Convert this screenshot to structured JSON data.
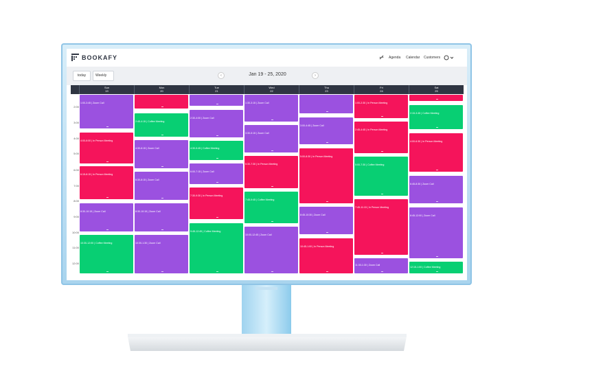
{
  "app": {
    "logo": "BOOKAFY",
    "nav": [
      "Agenda",
      "Calendar",
      "Customers"
    ],
    "today_button": "today",
    "view_select": "Weekly",
    "range_title": "Jan 19 - 25, 2020"
  },
  "days": [
    {
      "name": "Sun",
      "date": "19"
    },
    {
      "name": "Mon",
      "date": "20"
    },
    {
      "name": "Tue",
      "date": "21"
    },
    {
      "name": "Wed",
      "date": "22"
    },
    {
      "name": "Thu",
      "date": "23"
    },
    {
      "name": "Fri",
      "date": "24"
    },
    {
      "name": "Sat",
      "date": "25"
    }
  ],
  "hours": [
    "2:00",
    "3:00",
    "4:00",
    "5:00",
    "6:00",
    "7:00",
    "8:00",
    "9:00",
    "10:00",
    "11:00",
    "12:00"
  ],
  "events": [
    [
      {
        "label": "1:00-3:45 | Zoom Call",
        "color": "#9b51e0"
      },
      {
        "label": "4:00-6:00 | In Person Meeting",
        "color": "#f5145b"
      },
      {
        "label": "6:15-8:15 | In Person Meeting",
        "color": "#f5145b"
      },
      {
        "label": "8:30-10:15 | Zoom Call",
        "color": "#9b51e0"
      },
      {
        "label": "10:30-12:00 | Coffee Meeting",
        "color": "#08cf73"
      }
    ],
    [
      {
        "color": "#f5145b"
      },
      {
        "label": "2:45-4:15 | Coffee Meeting",
        "color": "#08cf73"
      },
      {
        "label": "4:30-6:15 | Zoom Call",
        "color": "#9b51e0"
      },
      {
        "label": "6:30-8:15 | Zoom Call",
        "color": "#9b51e0"
      },
      {
        "label": "8:30-10:15 | Zoom Call",
        "color": "#9b51e0"
      },
      {
        "label": "10:30-1:30 | Zoom Call",
        "color": "#9b51e0"
      }
    ],
    [
      {
        "color": "#9b51e0"
      },
      {
        "label": "2:30-4:00 | Zoom Call",
        "color": "#9b51e0"
      },
      {
        "label": "4:30-5:45 | Coffee Meeting",
        "color": "#08cf73"
      },
      {
        "label": "6:00-7:15 | Zoom Call",
        "color": "#9b51e0"
      },
      {
        "label": "7:30-9:30 | In Person Meeting",
        "color": "#f5145b"
      },
      {
        "label": "9:45-12:45 | Coffee Meeting",
        "color": "#08cf73"
      }
    ],
    [
      {
        "label": "1:30-3:15 | Zoom Call",
        "color": "#9b51e0"
      },
      {
        "label": "3:30-5:15 | Zoom Call",
        "color": "#9b51e0"
      },
      {
        "label": "5:30-7:30 | In Person Meeting",
        "color": "#f5145b"
      },
      {
        "label": "7:45-9:45 | Coffee Meeting",
        "color": "#08cf73"
      },
      {
        "label": "10:00-12:45 | Zoom Call",
        "color": "#9b51e0"
      }
    ],
    [
      {
        "color": "#9b51e0"
      },
      {
        "label": "3:00-4:45 | Zoom Call",
        "color": "#9b51e0"
      },
      {
        "label": "5:00-8:30 | In Person Meeting",
        "color": "#f5145b"
      },
      {
        "label": "8:45-10:30 | Zoom Call",
        "color": "#9b51e0"
      },
      {
        "label": "10:45-1:00 | In Person Meeting",
        "color": "#f5145b"
      }
    ],
    [
      {
        "label": "1:00-2:30 | In Person Meeting",
        "color": "#f5145b"
      },
      {
        "label": "2:45-4:45 | In Person Meeting",
        "color": "#f5145b"
      },
      {
        "label": "5:00-7:30 | Coffee Meeting",
        "color": "#08cf73"
      },
      {
        "label": "7:45-11:15 | In Person Meeting",
        "color": "#f5145b"
      },
      {
        "label": "11:30-1:30 | Zoom Call",
        "color": "#9b51e0"
      }
    ],
    [
      {
        "color": "#f5145b"
      },
      {
        "label": "2:15-3:45 | Coffee Meeting",
        "color": "#08cf73"
      },
      {
        "label": "4:00-6:30 | In Person Meeting",
        "color": "#f5145b"
      },
      {
        "label": "6:45-8:30 | Zoom Call",
        "color": "#9b51e0"
      },
      {
        "label": "8:45-12:00 | Zoom Call",
        "color": "#9b51e0"
      },
      {
        "label": "12:15-1:00 | Coffee Meeting",
        "color": "#08cf73"
      }
    ]
  ]
}
